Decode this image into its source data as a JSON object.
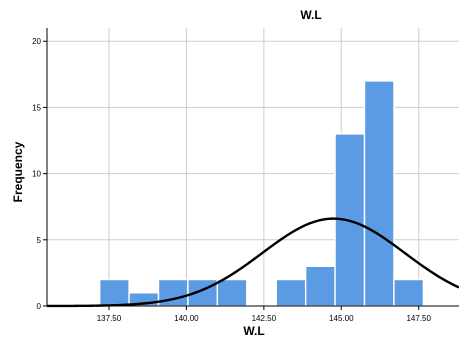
{
  "chart_data": {
    "type": "bar",
    "subtype": "histogram with normal curve",
    "title": "W.L",
    "xlabel": "W.L",
    "ylabel": "Frequency",
    "xlim": [
      135.5,
      148.8
    ],
    "ylim": [
      0,
      21
    ],
    "x_ticks": [
      137.5,
      140.0,
      142.5,
      145.0,
      147.5
    ],
    "x_tick_labels": [
      "137.50",
      "140.00",
      "142.50",
      "145.00",
      "147.50"
    ],
    "y_ticks": [
      0,
      5,
      10,
      15,
      20
    ],
    "y_tick_labels": [
      "0",
      "5",
      "10",
      "15",
      "20"
    ],
    "bin_width": 0.95,
    "bins": [
      {
        "start": 137.2,
        "end": 138.15,
        "count": 2
      },
      {
        "start": 138.15,
        "end": 139.1,
        "count": 1
      },
      {
        "start": 139.1,
        "end": 140.05,
        "count": 2
      },
      {
        "start": 140.05,
        "end": 141.0,
        "count": 2
      },
      {
        "start": 141.0,
        "end": 141.95,
        "count": 2
      },
      {
        "start": 141.95,
        "end": 142.9,
        "count": 0
      },
      {
        "start": 142.9,
        "end": 143.85,
        "count": 2
      },
      {
        "start": 143.85,
        "end": 144.8,
        "count": 3
      },
      {
        "start": 144.8,
        "end": 145.75,
        "count": 13
      },
      {
        "start": 145.75,
        "end": 146.7,
        "count": 17
      },
      {
        "start": 146.7,
        "end": 147.65,
        "count": 2
      }
    ],
    "normal_curve": {
      "mean": 144.75,
      "sd": 2.3,
      "peak": 6.6
    },
    "grid": true,
    "legend": "none",
    "colors": {
      "bar": "#5b9be3",
      "bar_edge": "#ffffff",
      "curve": "#000000",
      "grid": "#cfcfcf"
    }
  }
}
